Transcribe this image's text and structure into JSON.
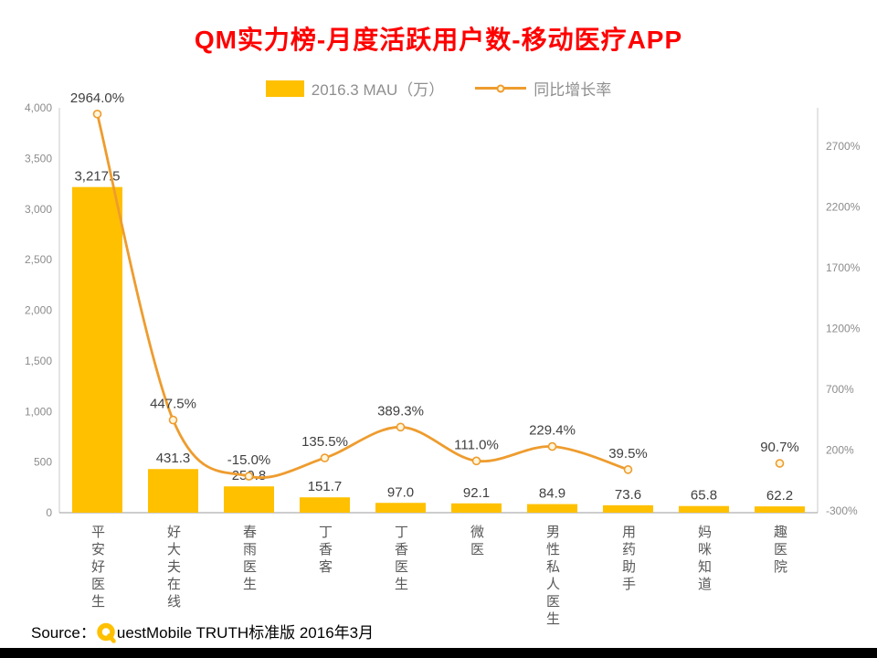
{
  "title": "QM实力榜-月度活跃用户数-移动医疗APP",
  "legend": {
    "bar_label": "2016.3 MAU（万）",
    "line_label": "同比增长率"
  },
  "source": {
    "prefix": "Source：",
    "brand_rest": "uestMobile TRUTH标准版 2016年3月"
  },
  "colors": {
    "title": "#FF0000",
    "bar": "#FFC000",
    "line": "#EE9C2E",
    "marker_fill": "#FFF6DC",
    "axis_text": "#8C8C8C",
    "label_text": "#404040",
    "category_text": "#595959",
    "footer_bar": "#000000"
  },
  "chart_data": {
    "type": "bar+line",
    "title": "QM实力榜-月度活跃用户数-移动医疗APP",
    "categories": [
      "平安好医生",
      "好大夫在线",
      "春雨医生",
      "丁香客",
      "丁香医生",
      "微医",
      "男性私人医生",
      "用药助手",
      "妈咪知道",
      "趣医院"
    ],
    "series": [
      {
        "name": "2016.3 MAU（万）",
        "type": "bar",
        "axis": "left",
        "values": [
          3217.5,
          431.3,
          259.8,
          151.7,
          97.0,
          92.1,
          84.9,
          73.6,
          65.8,
          62.2
        ],
        "labels": [
          "3,217.5",
          "431.3",
          "259.8",
          "151.7",
          "97.0",
          "92.1",
          "84.9",
          "73.6",
          "65.8",
          "62.2"
        ]
      },
      {
        "name": "同比增长率",
        "type": "line",
        "axis": "right",
        "values": [
          2964.0,
          447.5,
          -15.0,
          135.5,
          389.3,
          111.0,
          229.4,
          39.5,
          null,
          90.7
        ],
        "labels": [
          "2964.0%",
          "447.5%",
          "-15.0%",
          "135.5%",
          "389.3%",
          "111.0%",
          "229.4%",
          "39.5%",
          "",
          "90.7%"
        ]
      }
    ],
    "left_axis": {
      "min": 0,
      "max": 4000,
      "ticks": [
        "0",
        "500",
        "1,000",
        "1,500",
        "2,000",
        "2,500",
        "3,000",
        "3,500",
        "4,000"
      ],
      "tick_values": [
        0,
        500,
        1000,
        1500,
        2000,
        2500,
        3000,
        3500,
        4000
      ]
    },
    "right_axis": {
      "min": -315,
      "max": 3015,
      "ticks": [
        "-300%",
        "200%",
        "700%",
        "1200%",
        "1700%",
        "2200%",
        "2700%"
      ],
      "tick_values": [
        -300,
        200,
        700,
        1200,
        1700,
        2200,
        2700
      ]
    },
    "grid": false,
    "legend_position": "top"
  }
}
